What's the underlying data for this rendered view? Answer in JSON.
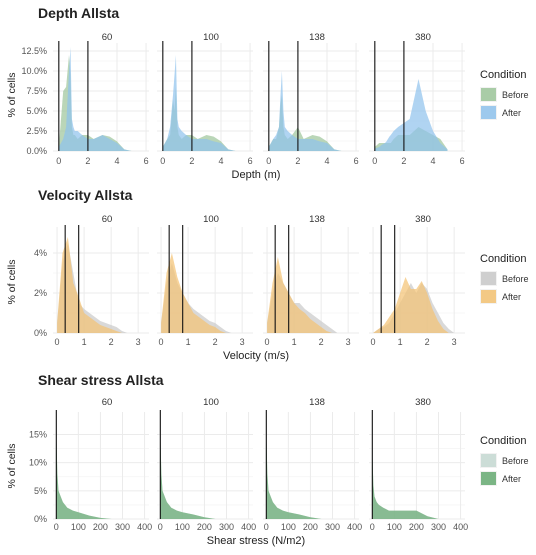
{
  "chart_data": [
    {
      "type": "area",
      "title": "Depth Allsta",
      "xlabel": "Depth (m)",
      "ylabel": "% of cells",
      "facets": [
        "60",
        "100",
        "138",
        "380"
      ],
      "x_ticks": [
        "0",
        "2",
        "4",
        "6"
      ],
      "x_range": [
        -0.4,
        6.2
      ],
      "y_ticks": [
        "0.0%",
        "2.5%",
        "5.0%",
        "7.5%",
        "10.0%",
        "12.5%"
      ],
      "y_range": [
        0,
        13.5
      ],
      "vlines": [
        0,
        2
      ],
      "legend": {
        "title": "Condition",
        "position": "right",
        "entries": [
          "Before",
          "After"
        ]
      },
      "colors": {
        "Before": "#9cc59a",
        "After": "#8ec2ec"
      },
      "grid": true,
      "series": [
        {
          "name": "Before",
          "x": [
            0,
            0.3,
            0.5,
            0.7,
            0.8,
            0.9,
            1.0,
            1.1,
            1.3,
            1.6,
            2.0,
            2.4,
            3.0,
            3.5,
            4.0,
            4.5,
            5.0
          ],
          "panels": [
            [
              0.5,
              7.5,
              8.0,
              12.0,
              9.5,
              3.0,
              2.0,
              2.0,
              1.5,
              2.0,
              2.0,
              1.5,
              2.0,
              1.8,
              1.2,
              0.2,
              0
            ],
            [
              0.5,
              1.5,
              2.0,
              6.5,
              5.0,
              8.0,
              3.0,
              2.0,
              1.5,
              2.0,
              2.0,
              1.5,
              2.0,
              1.8,
              1.2,
              0.2,
              0
            ],
            [
              0.5,
              1.5,
              1.5,
              3.0,
              6.0,
              7.0,
              3.0,
              2.0,
              1.5,
              2.0,
              3.0,
              1.5,
              2.0,
              1.8,
              1.2,
              0.2,
              0
            ],
            [
              0.5,
              1.0,
              1.0,
              1.0,
              1.0,
              1.0,
              1.0,
              1.0,
              1.5,
              2.0,
              2.0,
              2.0,
              3.0,
              2.5,
              2.0,
              1.5,
              0.2
            ]
          ]
        },
        {
          "name": "After",
          "x": [
            0,
            0.3,
            0.5,
            0.7,
            0.8,
            0.9,
            1.0,
            1.1,
            1.3,
            1.6,
            2.0,
            2.4,
            3.0,
            3.5,
            4.0,
            4.5,
            5.0
          ],
          "panels": [
            [
              0.5,
              1.5,
              3.0,
              10.0,
              13.0,
              4.0,
              3.0,
              2.5,
              2.5,
              2.0,
              1.5,
              1.5,
              2.0,
              1.5,
              1.0,
              0.2,
              0
            ],
            [
              0.5,
              1.5,
              3.0,
              7.0,
              9.5,
              12.0,
              4.0,
              3.0,
              2.5,
              2.0,
              1.5,
              1.5,
              1.5,
              1.2,
              1.0,
              0.2,
              0
            ],
            [
              0.5,
              1.5,
              2.0,
              3.0,
              7.0,
              10.0,
              5.0,
              3.0,
              2.5,
              2.0,
              1.5,
              1.5,
              1.5,
              1.2,
              1.0,
              0.2,
              0
            ],
            [
              0.3,
              0.5,
              0.8,
              1.0,
              1.2,
              1.5,
              1.8,
              2.0,
              2.5,
              3.0,
              3.5,
              4.0,
              9.0,
              5.0,
              2.5,
              1.0,
              0.2
            ]
          ]
        }
      ]
    },
    {
      "type": "area",
      "title": "Velocity Allsta",
      "xlabel": "Velocity (m/s)",
      "ylabel": "% of cells",
      "facets": [
        "60",
        "100",
        "138",
        "380"
      ],
      "x_ticks": [
        "0",
        "1",
        "2",
        "3"
      ],
      "x_range": [
        -0.15,
        3.4
      ],
      "y_ticks": [
        "0%",
        "2%",
        "4%"
      ],
      "y_range": [
        0,
        5.3
      ],
      "vlines": [
        0.3,
        0.8
      ],
      "legend": {
        "title": "Condition",
        "position": "right",
        "entries": [
          "Before",
          "After"
        ]
      },
      "colors": {
        "Before": "#c9c9c9",
        "After": "#f3c272"
      },
      "grid": true,
      "series": [
        {
          "name": "Before",
          "x": [
            0,
            0.2,
            0.4,
            0.6,
            0.8,
            1.0,
            1.2,
            1.4,
            1.6,
            1.8,
            2.0,
            2.2,
            2.4,
            2.6,
            2.8,
            3.0
          ],
          "panels": [
            [
              0.5,
              3.5,
              4.5,
              3.0,
              1.5,
              1.2,
              1.0,
              0.8,
              0.6,
              0.5,
              0.4,
              0.3,
              0.1,
              0,
              0,
              0
            ],
            [
              0.5,
              2.5,
              3.5,
              2.5,
              2.0,
              1.5,
              1.2,
              1.0,
              0.8,
              0.6,
              0.5,
              0.3,
              0.1,
              0,
              0,
              0
            ],
            [
              0.5,
              2.0,
              3.0,
              2.5,
              2.0,
              1.5,
              1.5,
              1.2,
              1.0,
              0.8,
              0.6,
              0.4,
              0.2,
              0,
              0,
              0
            ],
            [
              0,
              0.2,
              0.3,
              0.5,
              1.0,
              1.5,
              2.0,
              2.5,
              2.0,
              2.5,
              2.2,
              1.5,
              1.0,
              0.5,
              0.2,
              0
            ]
          ]
        },
        {
          "name": "After",
          "x": [
            0,
            0.2,
            0.4,
            0.6,
            0.8,
            1.0,
            1.2,
            1.4,
            1.6,
            1.8,
            2.0,
            2.2,
            2.4,
            2.6,
            2.8,
            3.0
          ],
          "panels": [
            [
              0.5,
              4.0,
              4.8,
              2.5,
              1.8,
              1.0,
              0.8,
              0.6,
              0.4,
              0.3,
              0.2,
              0.1,
              0,
              0,
              0,
              0
            ],
            [
              0.5,
              3.0,
              4.0,
              2.8,
              2.0,
              1.5,
              1.0,
              0.8,
              0.6,
              0.4,
              0.3,
              0.1,
              0,
              0,
              0,
              0
            ],
            [
              0.5,
              2.5,
              3.8,
              2.5,
              2.0,
              1.5,
              1.2,
              1.0,
              0.7,
              0.5,
              0.3,
              0.1,
              0,
              0,
              0,
              0
            ],
            [
              0,
              0.2,
              0.4,
              0.8,
              1.2,
              2.0,
              2.8,
              2.2,
              2.2,
              2.6,
              2.0,
              1.2,
              0.6,
              0.2,
              0,
              0
            ]
          ]
        }
      ]
    },
    {
      "type": "area",
      "title": "Shear stress Allsta",
      "xlabel": "Shear stress (N/m2)",
      "ylabel": "% of cells",
      "facets": [
        "60",
        "100",
        "138",
        "380"
      ],
      "x_ticks": [
        "0",
        "100",
        "200",
        "300",
        "400"
      ],
      "x_range": [
        -15,
        420
      ],
      "y_ticks": [
        "0%",
        "5%",
        "10%",
        "15%"
      ],
      "y_range": [
        0,
        19
      ],
      "vlines": [
        0
      ],
      "legend": {
        "title": "Condition",
        "position": "right",
        "entries": [
          "Before",
          "After"
        ]
      },
      "colors": {
        "Before": "#c5d9d2",
        "After": "#66aa72"
      },
      "grid": true,
      "series": [
        {
          "name": "Before",
          "x": [
            0,
            5,
            10,
            20,
            30,
            50,
            75,
            100,
            150,
            200,
            250,
            300
          ],
          "panels": [
            [
              15,
              8,
              5,
              4,
              3,
              2,
              1.5,
              1.2,
              0.6,
              0.2,
              0,
              0
            ],
            [
              15,
              8,
              5,
              4,
              3,
              2,
              1.5,
              1.2,
              0.8,
              0.3,
              0,
              0
            ],
            [
              15,
              8,
              5,
              4,
              3,
              2,
              1.5,
              1.2,
              0.8,
              0.3,
              0,
              0
            ],
            [
              12,
              6,
              4,
              3,
              2.5,
              2,
              1.5,
              1.5,
              1.5,
              1.5,
              0.5,
              0
            ]
          ]
        },
        {
          "name": "After",
          "x": [
            0,
            5,
            10,
            20,
            30,
            50,
            75,
            100,
            150,
            200,
            250,
            300
          ],
          "panels": [
            [
              15,
              8,
              5,
              4,
              3,
              2,
              1.5,
              1.2,
              0.6,
              0.2,
              0,
              0
            ],
            [
              15,
              8,
              5,
              4,
              3,
              2,
              1.5,
              1.2,
              0.8,
              0.3,
              0,
              0
            ],
            [
              15,
              8,
              5,
              4,
              3,
              2,
              1.5,
              1.2,
              0.8,
              0.3,
              0,
              0
            ],
            [
              12,
              6,
              4,
              3,
              2.5,
              2,
              1.5,
              1.5,
              1.5,
              1.5,
              0.5,
              0
            ]
          ]
        }
      ]
    }
  ]
}
